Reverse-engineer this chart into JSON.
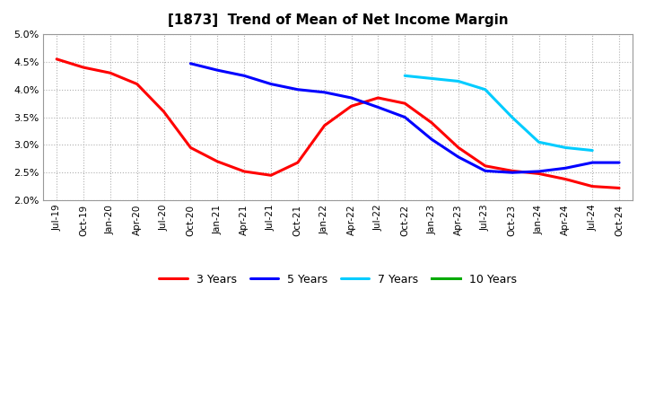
{
  "title": "[1873]  Trend of Mean of Net Income Margin",
  "ylim": [
    0.02,
    0.05
  ],
  "yticks": [
    0.02,
    0.025,
    0.03,
    0.035,
    0.04,
    0.045,
    0.05
  ],
  "background_color": "#ffffff",
  "plot_bg_color": "#ffffff",
  "grid_color": "#b0b0b0",
  "x_tick_labels": [
    "Jul-19",
    "Oct-19",
    "Jan-20",
    "Apr-20",
    "Jul-20",
    "Oct-20",
    "Jan-21",
    "Apr-21",
    "Jul-21",
    "Oct-21",
    "Jan-22",
    "Apr-22",
    "Jul-22",
    "Oct-22",
    "Jan-23",
    "Apr-23",
    "Jul-23",
    "Oct-23",
    "Jan-24",
    "Apr-24",
    "Jul-24",
    "Oct-24"
  ],
  "series": [
    {
      "name": "3 Years",
      "color": "#ff0000",
      "dates": [
        "Jul-19",
        "Oct-19",
        "Jan-20",
        "Apr-20",
        "Jul-20",
        "Oct-20",
        "Jan-21",
        "Apr-21",
        "Jul-21",
        "Oct-21",
        "Jan-22",
        "Apr-22",
        "Jul-22",
        "Oct-22",
        "Jan-23",
        "Apr-23",
        "Jul-23",
        "Oct-23",
        "Jan-24",
        "Apr-24",
        "Jul-24",
        "Oct-24"
      ],
      "values": [
        0.0455,
        0.044,
        0.043,
        0.041,
        0.036,
        0.0295,
        0.027,
        0.0252,
        0.0245,
        0.0268,
        0.0335,
        0.037,
        0.0385,
        0.0375,
        0.034,
        0.0295,
        0.0262,
        0.0253,
        0.0248,
        0.0238,
        0.0225,
        0.0222
      ]
    },
    {
      "name": "5 Years",
      "color": "#0000ff",
      "dates": [
        "Oct-20",
        "Jan-21",
        "Apr-21",
        "Jul-21",
        "Oct-21",
        "Jan-22",
        "Apr-22",
        "Jul-22",
        "Oct-22",
        "Jan-23",
        "Apr-23",
        "Jul-23",
        "Oct-23",
        "Jan-24",
        "Apr-24",
        "Jul-24",
        "Oct-24"
      ],
      "values": [
        0.0447,
        0.0435,
        0.0425,
        0.041,
        0.04,
        0.0395,
        0.0385,
        0.0368,
        0.035,
        0.031,
        0.0278,
        0.0253,
        0.025,
        0.0252,
        0.0258,
        0.0268,
        0.0268
      ]
    },
    {
      "name": "7 Years",
      "color": "#00ccff",
      "dates": [
        "Oct-22",
        "Jan-23",
        "Apr-23",
        "Jul-23",
        "Oct-23",
        "Jan-24",
        "Apr-24",
        "Jul-24"
      ],
      "values": [
        0.0425,
        0.042,
        0.0415,
        0.04,
        0.035,
        0.0305,
        0.0295,
        0.029
      ]
    },
    {
      "name": "10 Years",
      "color": "#00aa00",
      "dates": [],
      "values": []
    }
  ]
}
